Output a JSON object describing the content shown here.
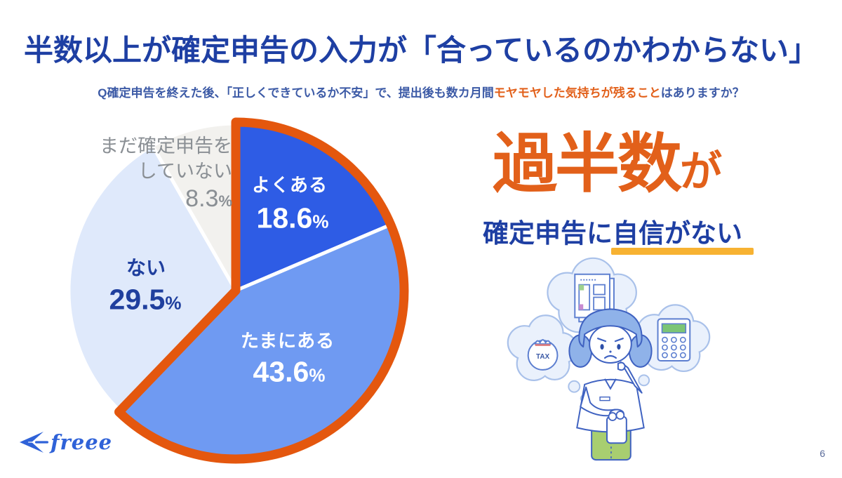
{
  "slide": {
    "title": "半数以上が確定申告の入力が「合っているのかわからない」",
    "title_color": "#1e3fa3",
    "question": {
      "prefix": "Q確定申告を終えた後、「正しくできているか不安」で、提出後も数カ月間",
      "highlight": "モヤモヤした気持ちが残ること",
      "suffix": "はありますか？",
      "highlight_color": "#e2601a"
    },
    "page_number": "6"
  },
  "chart_data": {
    "type": "pie",
    "unit": "%",
    "start_angle_deg": 0,
    "direction": "clockwise",
    "slices": [
      {
        "label": "よくある",
        "value": 18.6,
        "display": "18.6",
        "color": "#2e5ce5",
        "label_color": "#ffffff",
        "highlighted": true
      },
      {
        "label": "たまにある",
        "value": 43.6,
        "display": "43.6",
        "color": "#6f9af2",
        "label_color": "#ffffff",
        "highlighted": true
      },
      {
        "label": "ない",
        "value": 29.5,
        "display": "29.5",
        "color": "#dfe9fb",
        "label_color": "#1f3f9e",
        "highlighted": false
      },
      {
        "label": "まだ確定申告をしていない",
        "label_lines": [
          "まだ確定申告を",
          "していない"
        ],
        "value": 8.3,
        "display": "8.3",
        "color": "#f2f1ee",
        "label_color": "#8a8f94",
        "highlighted": false
      }
    ],
    "highlight_outline": {
      "color": "#e4570e",
      "covers_percent": 62.2
    },
    "legend_position": "inside",
    "grid": false
  },
  "callout": {
    "big_text": "過半数",
    "big_suffix": "が",
    "statement_plain": "確定申告に",
    "statement_underlined": "自信がない",
    "accent_color": "#e2601a",
    "underline_color": "#f7b232"
  },
  "illustration": {
    "character": "worried-woman",
    "bubbles": [
      "tax-documents",
      "tax-money-bag",
      "calculator"
    ],
    "bag_label": "TAX"
  },
  "footer": {
    "logo_text": "freee"
  }
}
